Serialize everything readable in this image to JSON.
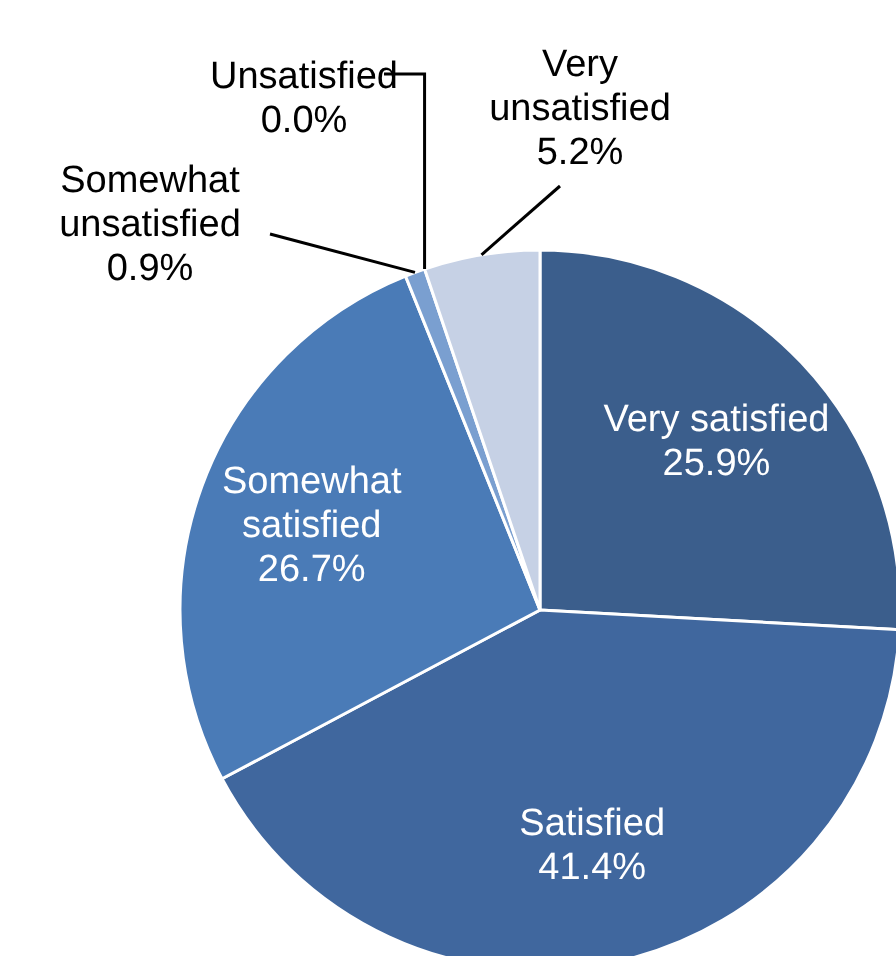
{
  "chart_data": {
    "type": "pie",
    "categories": [
      "Very satisfied",
      "Satisfied",
      "Somewhat satisfied",
      "Somewhat unsatisfied",
      "Unsatisfied",
      "Very unsatisfied"
    ],
    "values": [
      25.9,
      41.4,
      26.7,
      0.9,
      0.0,
      5.2
    ],
    "colors": [
      "#3b5e8c",
      "#40679e",
      "#4a7bb7",
      "#7a9fd0",
      null,
      "#c6d1e5"
    ],
    "value_labels": [
      "25.9%",
      "41.4%",
      "26.7%",
      "0.9%",
      "0.0%",
      "5.2%"
    ]
  }
}
